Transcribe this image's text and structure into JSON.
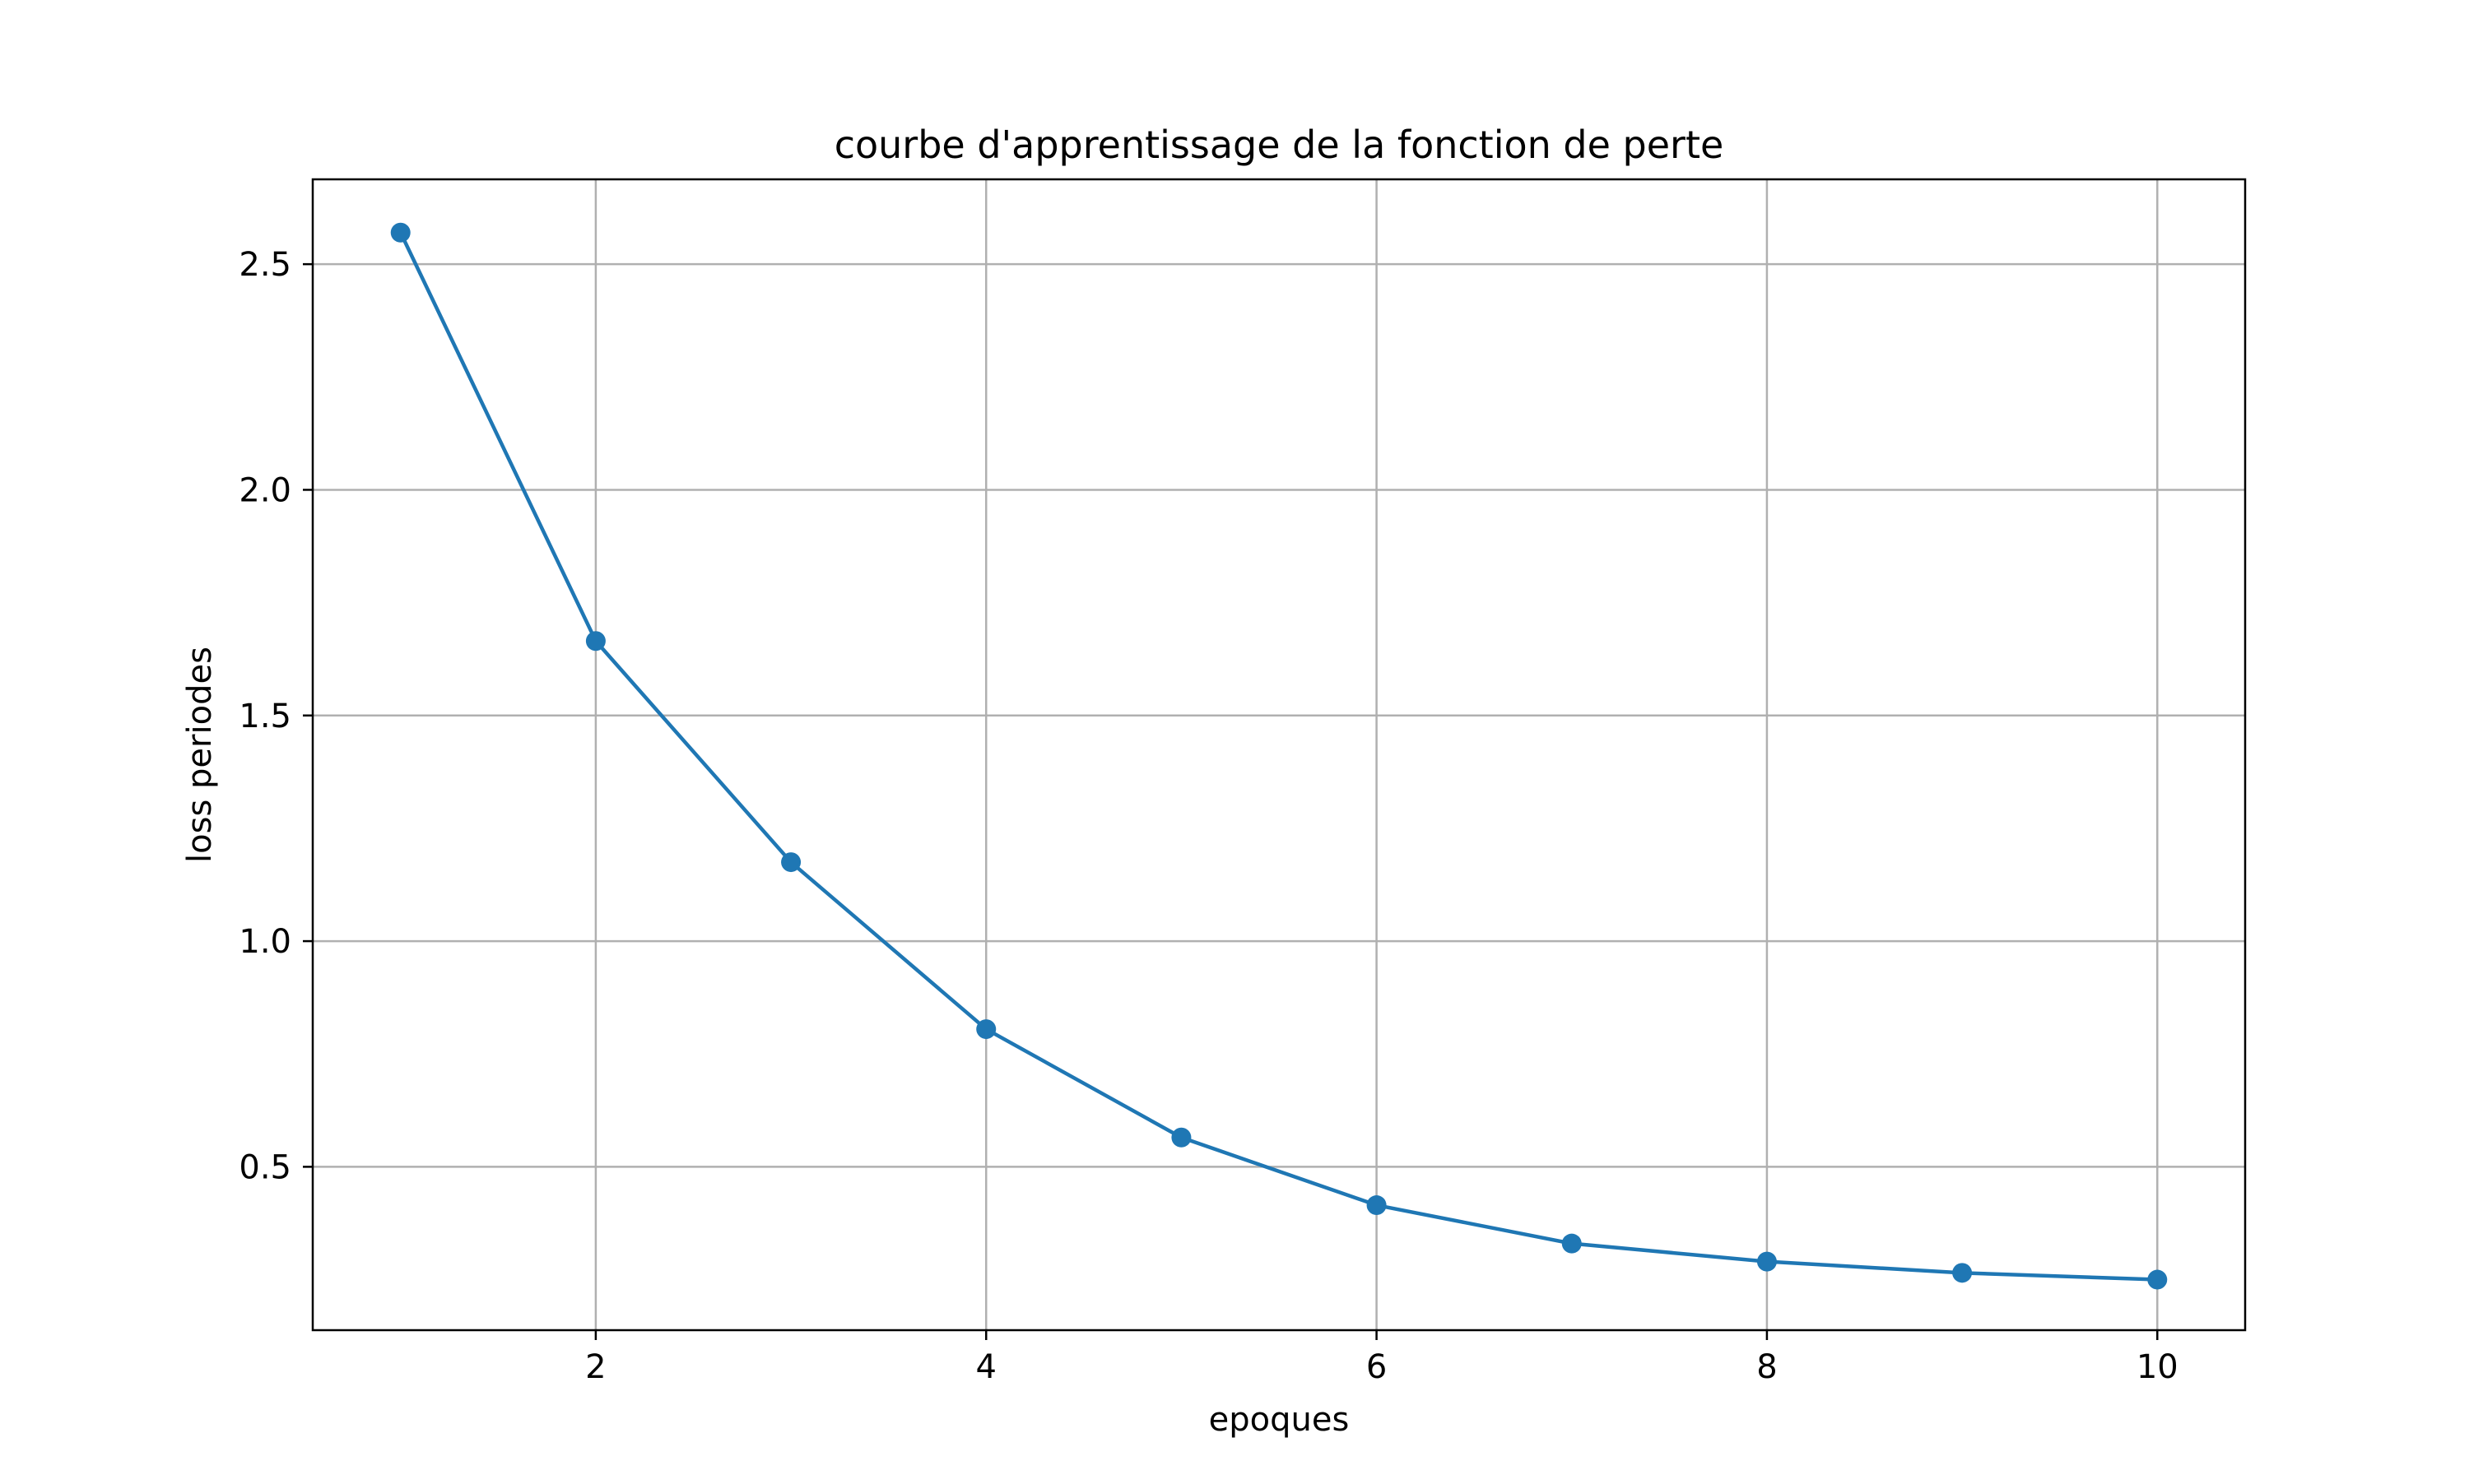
{
  "chart_data": {
    "type": "line",
    "title": "courbe d'apprentissage de la fonction de perte",
    "xlabel": "epoques",
    "ylabel": "loss periodes",
    "x": [
      1,
      2,
      3,
      4,
      5,
      6,
      7,
      8,
      9,
      10
    ],
    "series": [
      {
        "values": [
          2.57,
          1.665,
          1.175,
          0.805,
          0.565,
          0.415,
          0.33,
          0.29,
          0.265,
          0.25
        ]
      }
    ],
    "xlim": [
      0.55,
      10.45
    ],
    "ylim": [
      0.138,
      2.688
    ],
    "x_ticks": [
      2,
      4,
      6,
      8,
      10
    ],
    "x_tick_labels": [
      "2",
      "4",
      "6",
      "8",
      "10"
    ],
    "y_ticks": [
      0.5,
      1.0,
      1.5,
      2.0,
      2.5
    ],
    "y_tick_labels": [
      "0.5",
      "1.0",
      "1.5",
      "2.0",
      "2.5"
    ],
    "grid": true,
    "markers": "circle",
    "colors": {
      "line": "#1f77b4",
      "grid": "#b0b0b0",
      "axes": "#000000"
    }
  }
}
